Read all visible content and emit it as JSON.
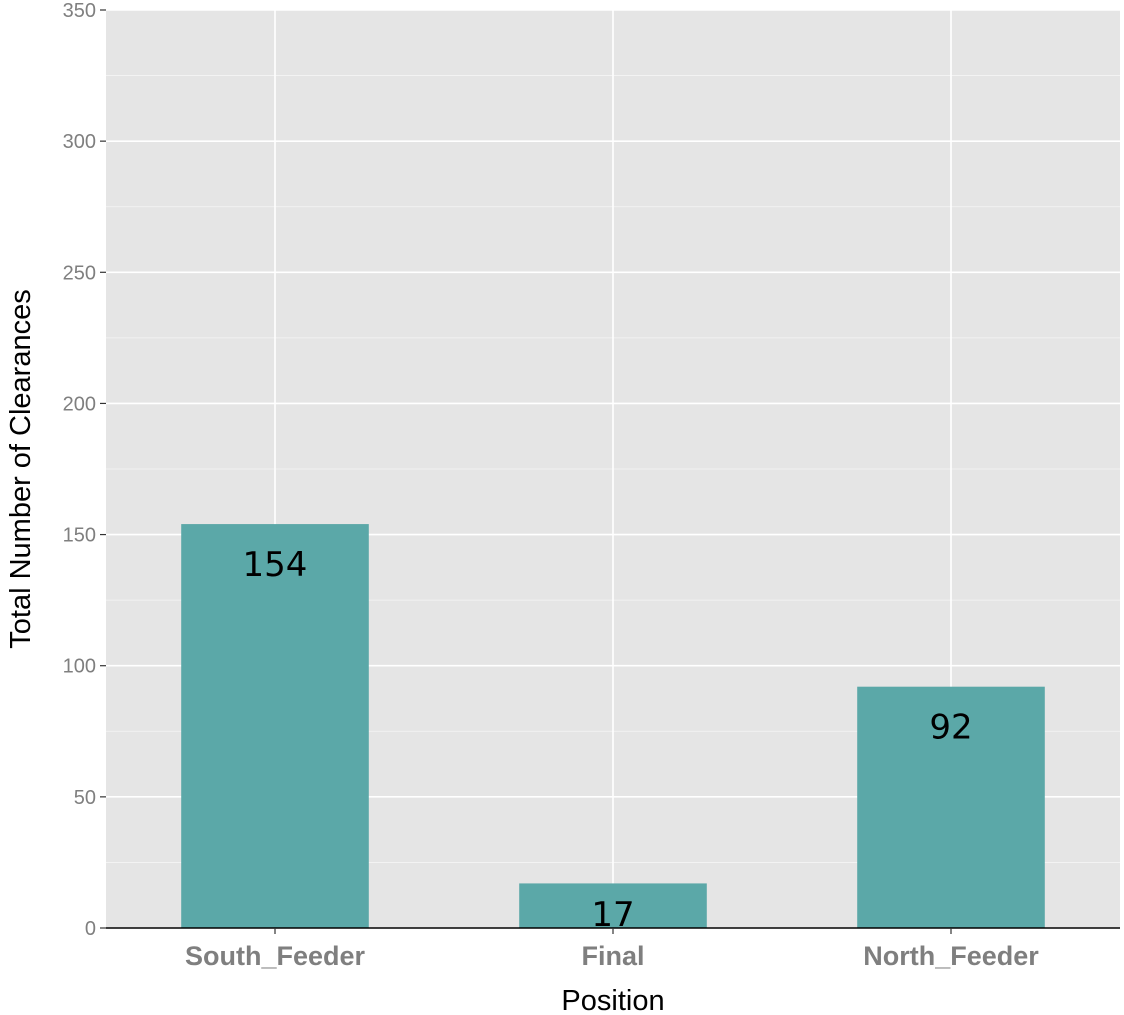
{
  "chart_data": {
    "type": "bar",
    "categories": [
      "South_Feeder",
      "Final",
      "North_Feeder"
    ],
    "values": [
      154,
      17,
      92
    ],
    "data_labels": [
      "154",
      "17",
      "92"
    ],
    "title": "",
    "xlabel": "Position",
    "ylabel": "Total Number of Clearances",
    "ylim": [
      0,
      350
    ],
    "yticks": [
      0,
      50,
      100,
      150,
      200,
      250,
      300,
      350
    ],
    "ytick_labels": [
      "0",
      "50",
      "100",
      "150",
      "200",
      "250",
      "300",
      "350"
    ],
    "grid": true,
    "legend": "none",
    "colors": {
      "bar": "#5ba8a8",
      "panel": "#e5e5e5",
      "grid": "#ffffff",
      "tick_text": "#7f7f7f",
      "axis_line": "#000000"
    }
  }
}
